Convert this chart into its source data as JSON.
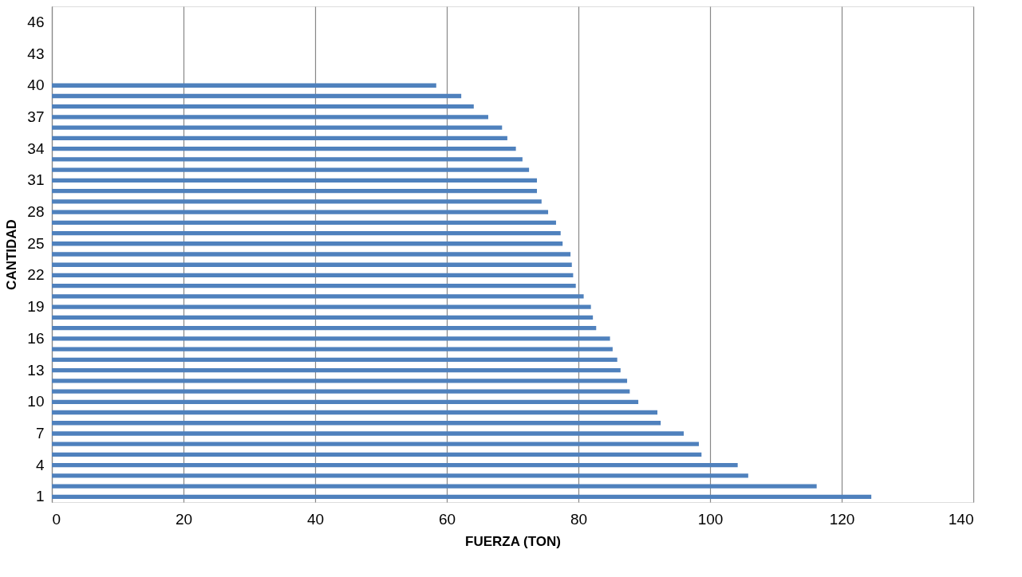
{
  "chart_data": {
    "type": "bar",
    "orientation": "horizontal",
    "xlabel": "FUERZA (TON)",
    "ylabel": "CANTIDAD",
    "categories": [
      null,
      "46",
      null,
      null,
      "43",
      null,
      null,
      "40",
      null,
      null,
      "37",
      null,
      null,
      "34",
      null,
      null,
      "31",
      null,
      null,
      "28",
      null,
      null,
      "25",
      null,
      null,
      "22",
      null,
      null,
      "19",
      null,
      null,
      "16",
      null,
      null,
      "13",
      null,
      null,
      "10",
      null,
      null,
      "7",
      null,
      null,
      "4",
      null,
      null,
      "1"
    ],
    "series": [
      {
        "color": "#4f81bd",
        "values": [
          null,
          null,
          null,
          null,
          null,
          null,
          null,
          58.4,
          62.2,
          64.1,
          66.3,
          68.4,
          69.2,
          70.5,
          71.5,
          72.5,
          73.7,
          73.7,
          74.4,
          75.4,
          76.6,
          77.3,
          77.6,
          78.8,
          79.0,
          79.2,
          79.6,
          80.8,
          81.9,
          82.2,
          82.7,
          84.8,
          85.2,
          85.9,
          86.4,
          87.4,
          87.8,
          89.1,
          92.0,
          92.5,
          96.0,
          98.3,
          98.7,
          104.2,
          105.8,
          116.2,
          124.5
        ]
      }
    ],
    "xlim": [
      0,
      140
    ],
    "xticks": [
      0,
      20,
      40,
      60,
      80,
      100,
      120,
      140
    ],
    "grid": "x",
    "legend": false
  }
}
